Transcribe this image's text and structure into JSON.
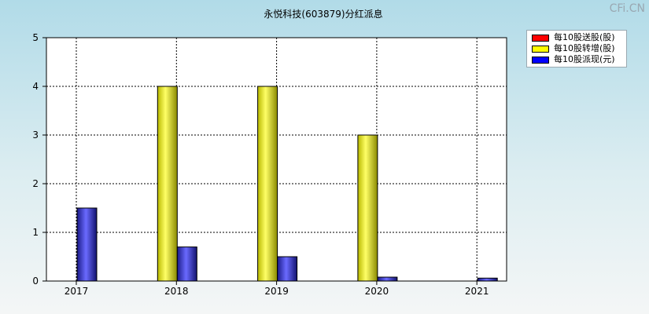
{
  "watermark": "CFi.CN",
  "chart_data": {
    "type": "bar",
    "title": "永悦科技(603879)分红派息",
    "xlabel": "",
    "ylabel": "",
    "categories": [
      "2017",
      "2018",
      "2019",
      "2020",
      "2021"
    ],
    "ylim": [
      0,
      5
    ],
    "yticks": [
      "0",
      "1",
      "2",
      "3",
      "4",
      "5"
    ],
    "grid": true,
    "legend_position": "top-right",
    "series": [
      {
        "name": "每10股送股(股)",
        "color": "#ff0000",
        "values": [
          0,
          0,
          0,
          0,
          0
        ]
      },
      {
        "name": "每10股转增(股)",
        "color": "#ffff00",
        "values": [
          0,
          4,
          4,
          3,
          0
        ]
      },
      {
        "name": "每10股派现(元)",
        "color": "#0000ff",
        "values": [
          1.5,
          0.7,
          0.5,
          0.08,
          0.06
        ]
      }
    ]
  }
}
